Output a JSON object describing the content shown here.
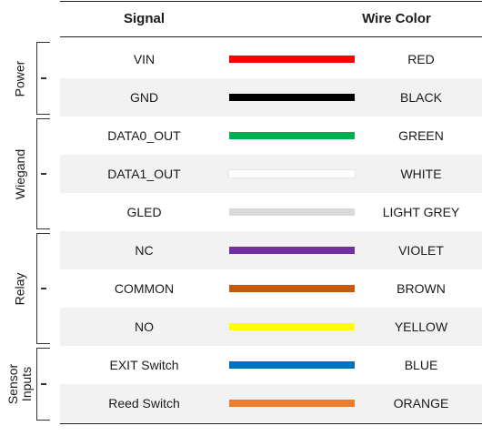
{
  "header": {
    "signal": "Signal",
    "wire_color": "Wire Color"
  },
  "groups": [
    {
      "label": "Power"
    },
    {
      "label": "Wiegand"
    },
    {
      "label": "Relay"
    },
    {
      "label": "Sensor\nInputs"
    }
  ],
  "rows": [
    {
      "signal": "VIN",
      "color_name": "RED",
      "color": "#ff0000"
    },
    {
      "signal": "GND",
      "color_name": "BLACK",
      "color": "#000000"
    },
    {
      "signal": "DATA0_OUT",
      "color_name": "GREEN",
      "color": "#00b050"
    },
    {
      "signal": "DATA1_OUT",
      "color_name": "WHITE",
      "color": "#ffffff"
    },
    {
      "signal": "GLED",
      "color_name": "LIGHT GREY",
      "color": "#d9d9d9"
    },
    {
      "signal": "NC",
      "color_name": "VIOLET",
      "color": "#7030a0"
    },
    {
      "signal": "COMMON",
      "color_name": "BROWN",
      "color": "#c55a11"
    },
    {
      "signal": "NO",
      "color_name": "YELLOW",
      "color": "#ffff00"
    },
    {
      "signal": "EXIT Switch",
      "color_name": "BLUE",
      "color": "#0070c0"
    },
    {
      "signal": "Reed Switch",
      "color_name": "ORANGE",
      "color": "#ed7d31"
    }
  ]
}
